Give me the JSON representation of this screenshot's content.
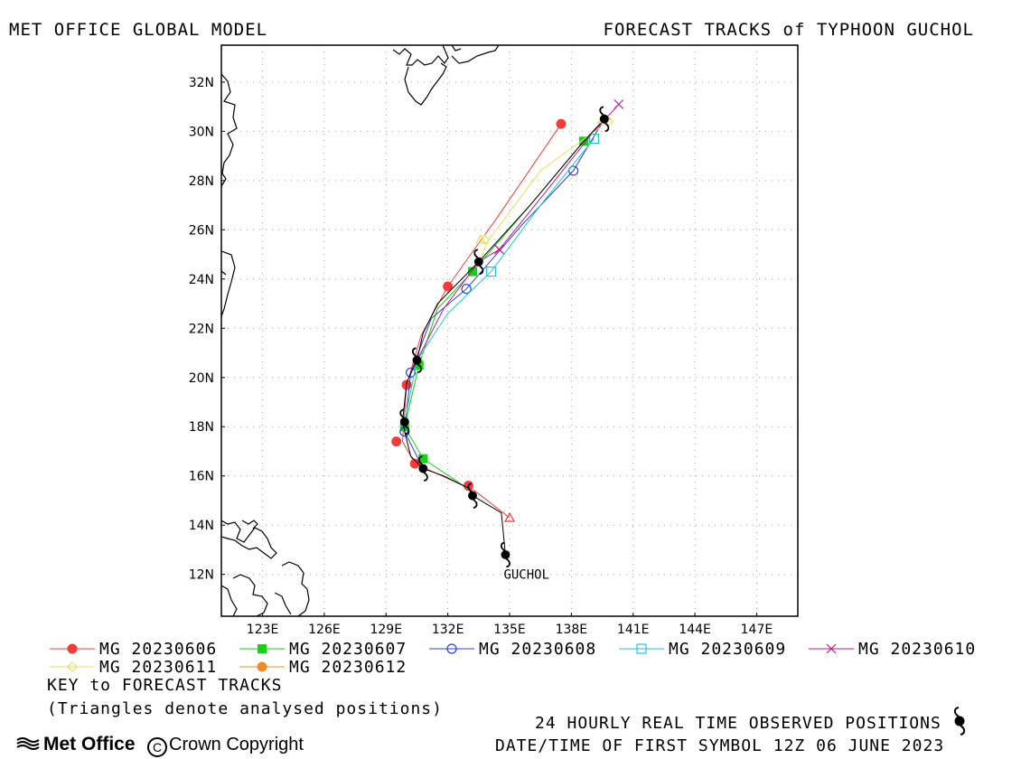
{
  "header": {
    "left_title": "MET OFFICE GLOBAL MODEL",
    "right_title": "FORECAST TRACKS of TYPHOON GUCHOL"
  },
  "map": {
    "lon_range": [
      121,
      149
    ],
    "lat_range": [
      10.3,
      33.5
    ],
    "lon_ticks": [
      {
        "v": 123,
        "label": "123E"
      },
      {
        "v": 126,
        "label": "126E"
      },
      {
        "v": 129,
        "label": "129E"
      },
      {
        "v": 132,
        "label": "132E"
      },
      {
        "v": 135,
        "label": "135E"
      },
      {
        "v": 138,
        "label": "138E"
      },
      {
        "v": 141,
        "label": "141E"
      },
      {
        "v": 144,
        "label": "144E"
      },
      {
        "v": 147,
        "label": "147E"
      }
    ],
    "lat_ticks": [
      {
        "v": 12,
        "label": "12N"
      },
      {
        "v": 14,
        "label": "14N"
      },
      {
        "v": 16,
        "label": "16N"
      },
      {
        "v": 18,
        "label": "18N"
      },
      {
        "v": 20,
        "label": "20N"
      },
      {
        "v": 22,
        "label": "22N"
      },
      {
        "v": 24,
        "label": "24N"
      },
      {
        "v": 26,
        "label": "26N"
      },
      {
        "v": 28,
        "label": "28N"
      },
      {
        "v": 30,
        "label": "30N"
      },
      {
        "v": 32,
        "label": "32N"
      }
    ],
    "grid": true,
    "storm_label": "GUCHOL",
    "storm_label_pos": [
      134.8,
      12.0
    ]
  },
  "observed_track": [
    [
      134.8,
      12.8
    ],
    [
      134.6,
      14.5
    ],
    [
      133.2,
      15.2
    ],
    [
      133.0,
      15.5
    ],
    [
      131.8,
      16.0
    ],
    [
      130.8,
      16.3
    ],
    [
      130.2,
      16.8
    ],
    [
      129.9,
      17.8
    ],
    [
      129.8,
      18.2
    ],
    [
      129.9,
      19.0
    ],
    [
      130.0,
      19.8
    ],
    [
      130.5,
      20.7
    ],
    [
      130.8,
      21.8
    ],
    [
      131.5,
      23.0
    ],
    [
      133.5,
      24.7
    ],
    [
      136.0,
      27.0
    ],
    [
      138.5,
      29.5
    ],
    [
      139.6,
      30.5
    ]
  ],
  "observed_symbols": [
    [
      134.8,
      12.8
    ],
    [
      133.2,
      15.2
    ],
    [
      130.8,
      16.3
    ],
    [
      129.9,
      18.2
    ],
    [
      130.5,
      20.7
    ],
    [
      133.5,
      24.7
    ],
    [
      139.6,
      30.5
    ]
  ],
  "analysed_positions": [
    {
      "pos": [
        135.0,
        14.3
      ],
      "color": "#e83c3c"
    },
    {
      "pos": [
        133.6,
        25.6
      ],
      "color": "#e8e060"
    },
    {
      "pos": [
        139.5,
        30.5
      ],
      "color": "#e8e060"
    }
  ],
  "forecast_tracks": [
    {
      "label": "MG 20230606",
      "color": "#f23c3c",
      "marker": "filled-circle",
      "points": [
        [
          135.0,
          14.3
        ],
        [
          133.3,
          15.4
        ],
        [
          130.4,
          16.5
        ],
        [
          129.8,
          17.4
        ],
        [
          130.0,
          19.7
        ],
        [
          130.7,
          21.7
        ],
        [
          132.0,
          23.7
        ],
        [
          134.4,
          26.5
        ],
        [
          137.5,
          30.3
        ]
      ],
      "markers": [
        [
          133.0,
          15.6
        ],
        [
          130.4,
          16.5
        ],
        [
          129.5,
          17.4
        ],
        [
          130.0,
          19.7
        ],
        [
          132.0,
          23.7
        ],
        [
          137.5,
          30.3
        ]
      ]
    },
    {
      "label": "MG 20230607",
      "color": "#14d214",
      "marker": "filled-square",
      "points": [
        [
          133.3,
          15.3
        ],
        [
          130.8,
          16.7
        ],
        [
          129.9,
          18.0
        ],
        [
          130.6,
          20.5
        ],
        [
          131.5,
          22.8
        ],
        [
          133.2,
          24.3
        ],
        [
          136.0,
          27.0
        ],
        [
          138.6,
          29.6
        ]
      ],
      "markers": [
        [
          130.8,
          16.7
        ],
        [
          129.9,
          18.0
        ],
        [
          130.6,
          20.5
        ],
        [
          133.2,
          24.3
        ],
        [
          138.6,
          29.6
        ]
      ]
    },
    {
      "label": "MG 20230608",
      "color": "#2840e0",
      "marker": "open-circle",
      "points": [
        [
          130.8,
          16.3
        ],
        [
          129.9,
          17.8
        ],
        [
          130.2,
          20.2
        ],
        [
          131.2,
          22.4
        ],
        [
          132.9,
          23.6
        ],
        [
          135.6,
          26.2
        ],
        [
          138.1,
          28.4
        ],
        [
          139.6,
          30.5
        ]
      ],
      "markers": [
        [
          129.9,
          17.8
        ],
        [
          130.2,
          20.2
        ],
        [
          132.9,
          23.6
        ],
        [
          138.1,
          28.4
        ]
      ]
    },
    {
      "label": "MG 20230609",
      "color": "#20c8d2",
      "marker": "open-square",
      "points": [
        [
          129.9,
          18.2
        ],
        [
          130.5,
          20.7
        ],
        [
          132.0,
          22.6
        ],
        [
          134.1,
          24.3
        ],
        [
          136.5,
          27.0
        ],
        [
          139.1,
          29.7
        ]
      ],
      "markers": [
        [
          134.1,
          24.3
        ],
        [
          139.1,
          29.7
        ]
      ]
    },
    {
      "label": "MG 20230610",
      "color": "#c8148c",
      "marker": "cross",
      "points": [
        [
          130.5,
          20.7
        ],
        [
          131.8,
          22.8
        ],
        [
          133.5,
          24.7
        ],
        [
          134.5,
          25.2
        ],
        [
          137.0,
          27.8
        ],
        [
          139.0,
          29.9
        ],
        [
          140.3,
          31.1
        ]
      ],
      "markers": [
        [
          134.5,
          25.2
        ],
        [
          140.3,
          31.1
        ]
      ]
    },
    {
      "label": "MG 20230611",
      "color": "#e8e060",
      "marker": "open-diamond",
      "points": [
        [
          133.5,
          24.7
        ],
        [
          134.0,
          25.6
        ],
        [
          136.5,
          28.4
        ],
        [
          139.8,
          30.4
        ]
      ],
      "markers": [
        [
          133.8,
          25.6
        ],
        [
          139.8,
          30.4
        ]
      ]
    },
    {
      "label": "MG 20230612",
      "color": "#f08c28",
      "marker": "filled-circle",
      "points": [
        [
          139.6,
          30.5
        ],
        [
          139.9,
          30.5
        ]
      ],
      "markers": []
    }
  ],
  "legend": {
    "key_title": "KEY to FORECAST TRACKS",
    "triangles_note": "(Triangles denote analysed positions)"
  },
  "footer": {
    "observed_note": "24 HOURLY REAL TIME OBSERVED POSITIONS",
    "datetime_note": "DATE/TIME OF FIRST SYMBOL 12Z 06 JUNE 2023",
    "brand": "Met Office",
    "copyright": "Crown Copyright"
  },
  "colors": {
    "land_outline": "#000000",
    "grid": "#a0a0a0",
    "frame": "#000000"
  }
}
